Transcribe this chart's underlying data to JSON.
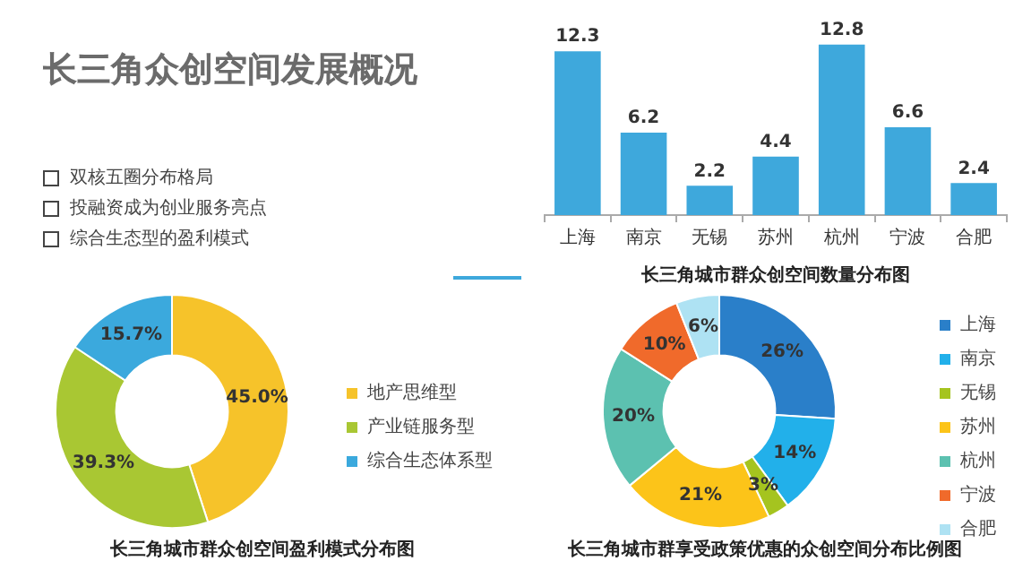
{
  "chart_data": [
    {
      "type": "other",
      "title": "长三角众创空间发展概况",
      "annotations": [
        "双核五圈分布格局",
        "投融资成为创业服务亮点",
        "综合生态型的盈利模式"
      ]
    },
    {
      "type": "bar",
      "title": "长三角城市群众创空间数量分布图",
      "categories": [
        "上海",
        "南京",
        "无锡",
        "苏州",
        "杭州",
        "宁波",
        "合肥"
      ],
      "values": [
        12.3,
        6.2,
        2.2,
        4.4,
        12.8,
        6.6,
        2.4
      ],
      "color": "#3ea8dc",
      "data_labels": true,
      "grid": false,
      "legend": false
    },
    {
      "type": "donut",
      "title": "长三角城市群众创空间盈利模式分布图",
      "categories": [
        "地产思维型",
        "产业链服务型",
        "综合生态体系型"
      ],
      "values": [
        45.0,
        39.3,
        15.7
      ],
      "colors": [
        "#f6c32a",
        "#a9c733",
        "#3ba9dd"
      ],
      "value_labels": [
        "45.0%",
        "39.3%",
        "15.7%"
      ],
      "legend": "right"
    },
    {
      "type": "donut",
      "title": "长三角城市群享受政策优惠的众创空间分布比例图",
      "categories": [
        "上海",
        "南京",
        "无锡",
        "苏州",
        "杭州",
        "宁波",
        "合肥"
      ],
      "values": [
        26,
        14,
        3,
        21,
        20,
        10,
        6
      ],
      "colors": [
        "#2a7fc9",
        "#22b0ea",
        "#a5c41f",
        "#fcc419",
        "#5cc1b0",
        "#f06a2b",
        "#aee2f3"
      ],
      "value_labels": [
        "26%",
        "14%",
        "3%",
        "21%",
        "20%",
        "10%",
        "6%"
      ],
      "legend": "right"
    }
  ]
}
